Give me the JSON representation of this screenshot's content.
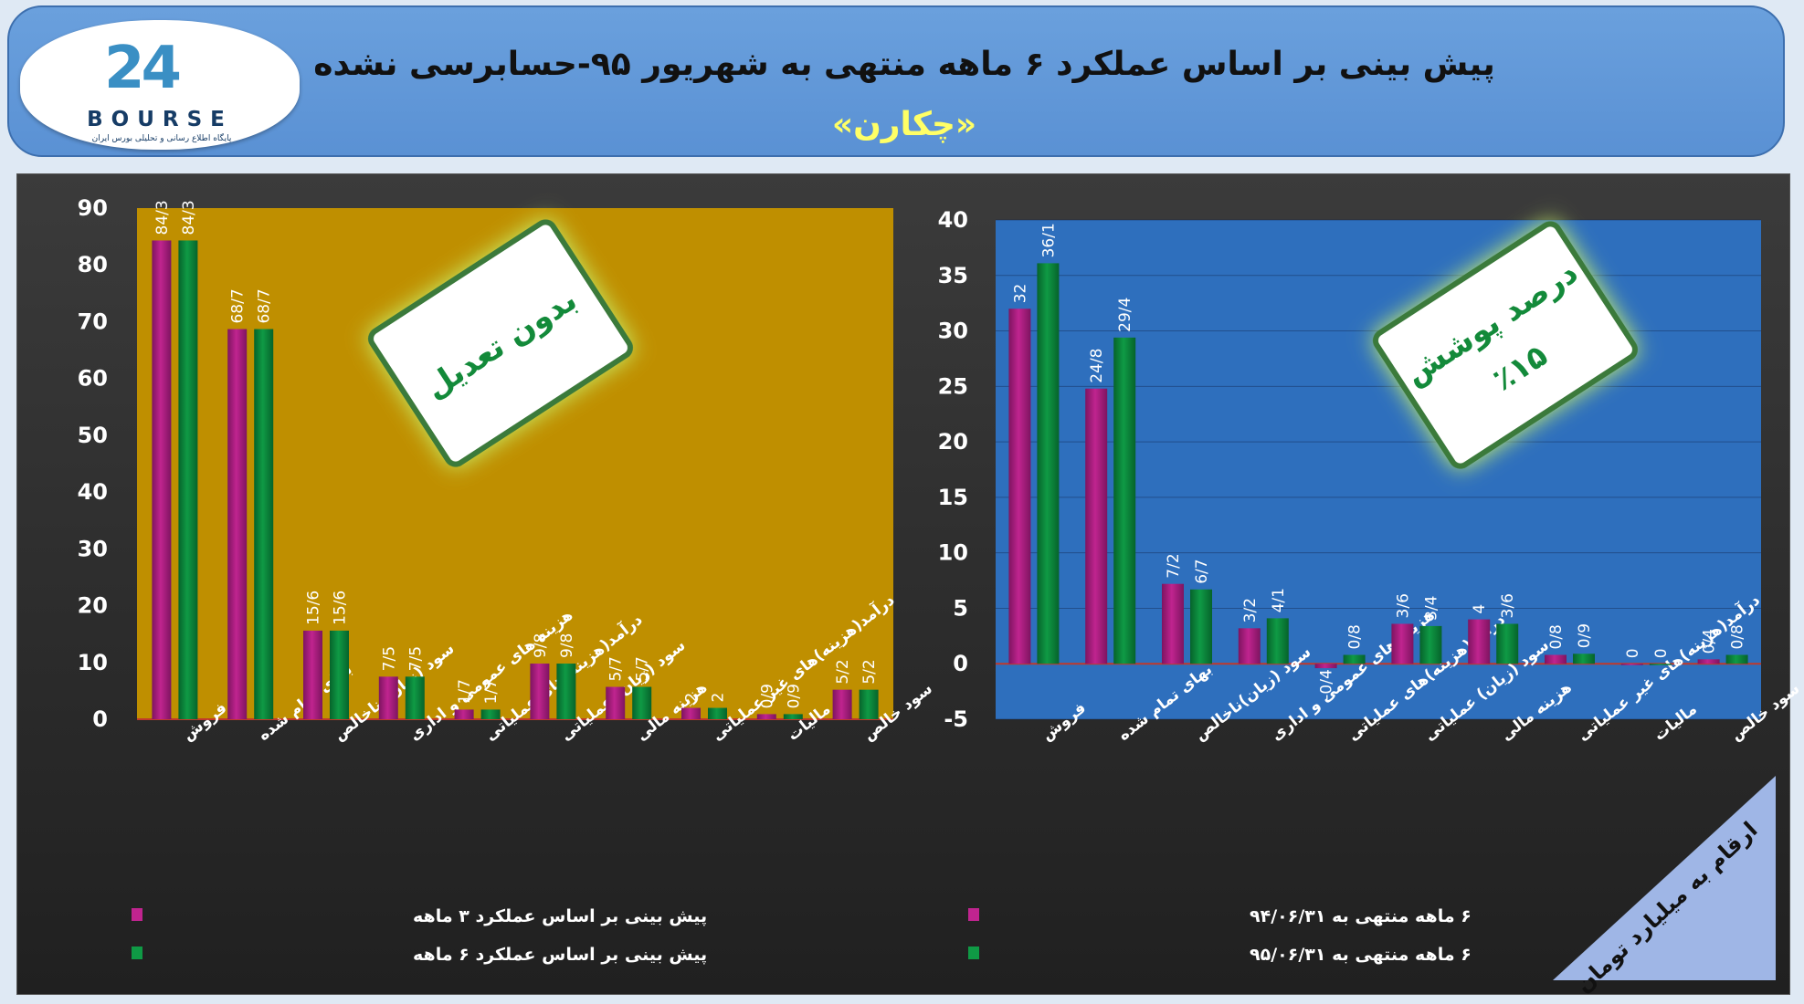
{
  "header": {
    "title": "پیش بینی بر اساس عملکرد ۶ ماهه منتهی به شهریور ۹۵-حسابرسی نشده",
    "subtitle": "«چکارن»",
    "logo_word": "BOURSE",
    "logo_mark": "24",
    "logo_sub": "پایگاه اطلاع رسانی و تحلیلی بورس ایران"
  },
  "colors": {
    "series_a": "#c0248f",
    "series_b": "#0f9a45",
    "left_plot_bg": "#bf8f00",
    "right_plot_bg": "#2e6fbd",
    "zero_line": "#c0392b"
  },
  "callouts": {
    "left": "بدون تعدیل",
    "right_1": "درصد پوشش",
    "right_2": "٪۱۵"
  },
  "unit_note": "ارقام به میلیارد تومان",
  "chart_data": [
    {
      "type": "bar",
      "categories": [
        "فروش",
        "بهای تمام شده",
        "سود (زیان) ناخالص",
        "هزینه های عمومی و اداری",
        "درآمد(هزینه)های عملیاتی",
        "سود (زیان) عملیاتی",
        "هزینه مالی",
        "درآمد(هزینه)های غیر عملیاتی",
        "مالیات",
        "سود خالص"
      ],
      "series": [
        {
          "name": "پیش بینی بر اساس عملکرد ۳ ماهه",
          "values": [
            84.3,
            68.7,
            15.6,
            7.5,
            1.7,
            9.8,
            5.7,
            2,
            0.9,
            5.2
          ],
          "labels": [
            "84/3",
            "68/7",
            "15/6",
            "7/5",
            "1/7",
            "9/8",
            "5/7",
            "2",
            "0/9",
            "5/2"
          ]
        },
        {
          "name": "پیش بینی بر اساس عملکرد ۶ ماهه",
          "values": [
            84.3,
            68.7,
            15.6,
            7.5,
            1.7,
            9.8,
            5.7,
            2,
            0.9,
            5.2
          ],
          "labels": [
            "84/3",
            "68/7",
            "15/6",
            "7/5",
            "1/7",
            "9/8",
            "5/7",
            "2",
            "0/9",
            "5/2"
          ]
        }
      ],
      "ylim": [
        0,
        90
      ],
      "yticks": [
        0,
        10,
        20,
        30,
        40,
        50,
        60,
        70,
        80,
        90
      ],
      "grid": false,
      "legend": "bottom-left"
    },
    {
      "type": "bar",
      "categories": [
        "فروش",
        "بهای تمام شده",
        "سود (زیان)ناخالص",
        "هزینه های عمومی و اداری",
        "درآمد(هزینه)های عملیاتی",
        "سود (زیان) عملیاتی",
        "هزینه مالی",
        "درآمد(هزینه)های غیر عملیاتی",
        "مالیات",
        "سود خالص"
      ],
      "series": [
        {
          "name": "۶ ماهه منتهی به ۹۴/۰۶/۳۱",
          "values": [
            32,
            24.8,
            7.2,
            3.2,
            -0.4,
            3.6,
            4,
            0.8,
            0,
            0.4
          ],
          "labels": [
            "32",
            "24/8",
            "7/2",
            "3/2",
            "-0/4",
            "3/6",
            "4",
            "0/8",
            "0",
            "0/4"
          ]
        },
        {
          "name": "۶ ماهه منتهی به ۹۵/۰۶/۳۱",
          "values": [
            36.1,
            29.4,
            6.7,
            4.1,
            0.8,
            3.4,
            3.6,
            0.9,
            0,
            0.8
          ],
          "labels": [
            "36/1",
            "29/4",
            "6/7",
            "4/1",
            "0/8",
            "3/4",
            "3/6",
            "0/9",
            "0",
            "0/8"
          ]
        }
      ],
      "ylim": [
        -5,
        40
      ],
      "yticks": [
        -5,
        0,
        5,
        10,
        15,
        20,
        25,
        30,
        35,
        40
      ],
      "grid": true,
      "legend": "bottom-left"
    }
  ]
}
